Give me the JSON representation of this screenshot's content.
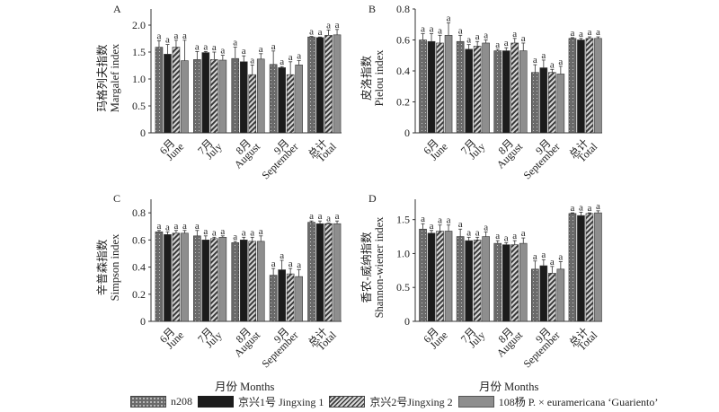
{
  "legend": [
    {
      "label": "n208",
      "pattern": "dots",
      "color": "#6e6e6e"
    },
    {
      "label": "京兴1号 Jingxing 1",
      "pattern": "solid",
      "color": "#1c1c1c"
    },
    {
      "label": "京兴2号Jingxing 2",
      "pattern": "hatch",
      "color": "#7a7a7a"
    },
    {
      "label": "108杨 P. × euramericana ‘Guariento’",
      "pattern": "solid",
      "color": "#8e8e8e"
    }
  ],
  "x_titles": [
    "月份 Months",
    "月份 Months"
  ],
  "chart_data": [
    {
      "type": "bar",
      "panel": "A",
      "ylabel_cn": "玛格列夫指数",
      "ylabel": "Margalef index",
      "categories": [
        [
          "6月",
          "June"
        ],
        [
          "7月",
          "July"
        ],
        [
          "8月",
          "August"
        ],
        [
          "9月",
          "September"
        ],
        [
          "总计",
          "Total"
        ]
      ],
      "ylim": [
        0,
        2.3
      ],
      "yticks": [
        0,
        0.5,
        1.0,
        1.5,
        2.0
      ],
      "ytick_labels": [
        "0",
        "0.5",
        "1.0",
        "1.5",
        "2.0"
      ],
      "series": [
        {
          "name": "n208",
          "values": [
            1.59,
            1.36,
            1.38,
            1.27,
            1.78
          ],
          "err": [
            0.12,
            0.15,
            0.21,
            0.25,
            0.01
          ]
        },
        {
          "name": "Jingxing 1",
          "values": [
            1.46,
            1.49,
            1.32,
            1.21,
            1.77
          ],
          "err": [
            0.18,
            0.02,
            0.11,
            0.02,
            0.01
          ]
        },
        {
          "name": "Jingxing 2",
          "values": [
            1.59,
            1.36,
            1.08,
            1.08,
            1.81
          ],
          "err": [
            0.13,
            0.14,
            0.18,
            0.24,
            0.1
          ]
        },
        {
          "name": "Guariento",
          "values": [
            1.34,
            1.35,
            1.37,
            1.26,
            1.82
          ],
          "err": [
            0.38,
            0.09,
            0.1,
            0.08,
            0.1
          ]
        }
      ],
      "labels": "a"
    },
    {
      "type": "bar",
      "panel": "B",
      "ylabel_cn": "皮洛指数",
      "ylabel": "Pielou index",
      "categories": [
        [
          "6月",
          "June"
        ],
        [
          "7月",
          "July"
        ],
        [
          "8月",
          "August"
        ],
        [
          "9月",
          "September"
        ],
        [
          "总计",
          "Total"
        ]
      ],
      "ylim": [
        0,
        0.8
      ],
      "yticks": [
        0,
        0.2,
        0.4,
        0.6,
        0.8
      ],
      "ytick_labels": [
        "0",
        "0.2",
        "0.4",
        "0.6",
        "0.8"
      ],
      "series": [
        {
          "name": "n208",
          "values": [
            0.6,
            0.59,
            0.53,
            0.39,
            0.61
          ],
          "err": [
            0.04,
            0.04,
            0.01,
            0.05,
            0.005
          ]
        },
        {
          "name": "Jingxing 1",
          "values": [
            0.59,
            0.54,
            0.53,
            0.42,
            0.6
          ],
          "err": [
            0.05,
            0.03,
            0.02,
            0.05,
            0.01
          ]
        },
        {
          "name": "Jingxing 2",
          "values": [
            0.58,
            0.56,
            0.58,
            0.39,
            0.61
          ],
          "err": [
            0.05,
            0.03,
            0.03,
            0.02,
            0.01
          ]
        },
        {
          "name": "Guariento",
          "values": [
            0.63,
            0.58,
            0.53,
            0.38,
            0.61
          ],
          "err": [
            0.08,
            0.02,
            0.05,
            0.05,
            0.01
          ]
        }
      ],
      "labels": "a"
    },
    {
      "type": "bar",
      "panel": "C",
      "ylabel_cn": "辛普森指数",
      "ylabel": "Simpson index",
      "categories": [
        [
          "6月",
          "June"
        ],
        [
          "7月",
          "July"
        ],
        [
          "8月",
          "August"
        ],
        [
          "9月",
          "September"
        ],
        [
          "总计",
          "Total"
        ]
      ],
      "ylim": [
        0,
        0.9
      ],
      "yticks": [
        0,
        0.2,
        0.4,
        0.6,
        0.8
      ],
      "ytick_labels": [
        "0",
        "0.2",
        "0.4",
        "0.6",
        "0.8"
      ],
      "series": [
        {
          "name": "n208",
          "values": [
            0.66,
            0.63,
            0.58,
            0.34,
            0.73
          ],
          "err": [
            0.01,
            0.04,
            0.01,
            0.05,
            0.01
          ]
        },
        {
          "name": "Jingxing 1",
          "values": [
            0.64,
            0.6,
            0.6,
            0.38,
            0.72
          ],
          "err": [
            0.02,
            0.03,
            0.02,
            0.07,
            0.02
          ]
        },
        {
          "name": "Jingxing 2",
          "values": [
            0.65,
            0.61,
            0.59,
            0.35,
            0.72
          ],
          "err": [
            0.02,
            0.01,
            0.03,
            0.04,
            0.005
          ]
        },
        {
          "name": "Guariento",
          "values": [
            0.65,
            0.62,
            0.59,
            0.33,
            0.72
          ],
          "err": [
            0.02,
            0.01,
            0.04,
            0.05,
            0.02
          ]
        }
      ],
      "labels": "a"
    },
    {
      "type": "bar",
      "panel": "D",
      "ylabel_cn": "香农-威纳指数",
      "ylabel": "Shannon-wiener index",
      "categories": [
        [
          "6月",
          "June"
        ],
        [
          "7月",
          "July"
        ],
        [
          "8月",
          "August"
        ],
        [
          "9月",
          "September"
        ],
        [
          "总计",
          "Total"
        ]
      ],
      "ylim": [
        0,
        1.8
      ],
      "yticks": [
        0,
        0.5,
        1.0,
        1.5
      ],
      "ytick_labels": [
        "0",
        "0.5",
        "1.0",
        "1.5"
      ],
      "series": [
        {
          "name": "n208",
          "values": [
            1.36,
            1.25,
            1.15,
            0.77,
            1.59
          ],
          "err": [
            0.08,
            0.11,
            0.04,
            0.12,
            0.01
          ]
        },
        {
          "name": "Jingxing 1",
          "values": [
            1.3,
            1.19,
            1.13,
            0.82,
            1.56
          ],
          "err": [
            0.04,
            0.05,
            0.03,
            0.09,
            0.05
          ]
        },
        {
          "name": "Jingxing 2",
          "values": [
            1.33,
            1.2,
            1.13,
            0.71,
            1.59
          ],
          "err": [
            0.09,
            0.04,
            0.06,
            0.1,
            0.01
          ]
        },
        {
          "name": "Guariento",
          "values": [
            1.33,
            1.25,
            1.15,
            0.77,
            1.6
          ],
          "err": [
            0.09,
            0.07,
            0.08,
            0.11,
            0.03
          ]
        }
      ],
      "labels": "a"
    }
  ]
}
